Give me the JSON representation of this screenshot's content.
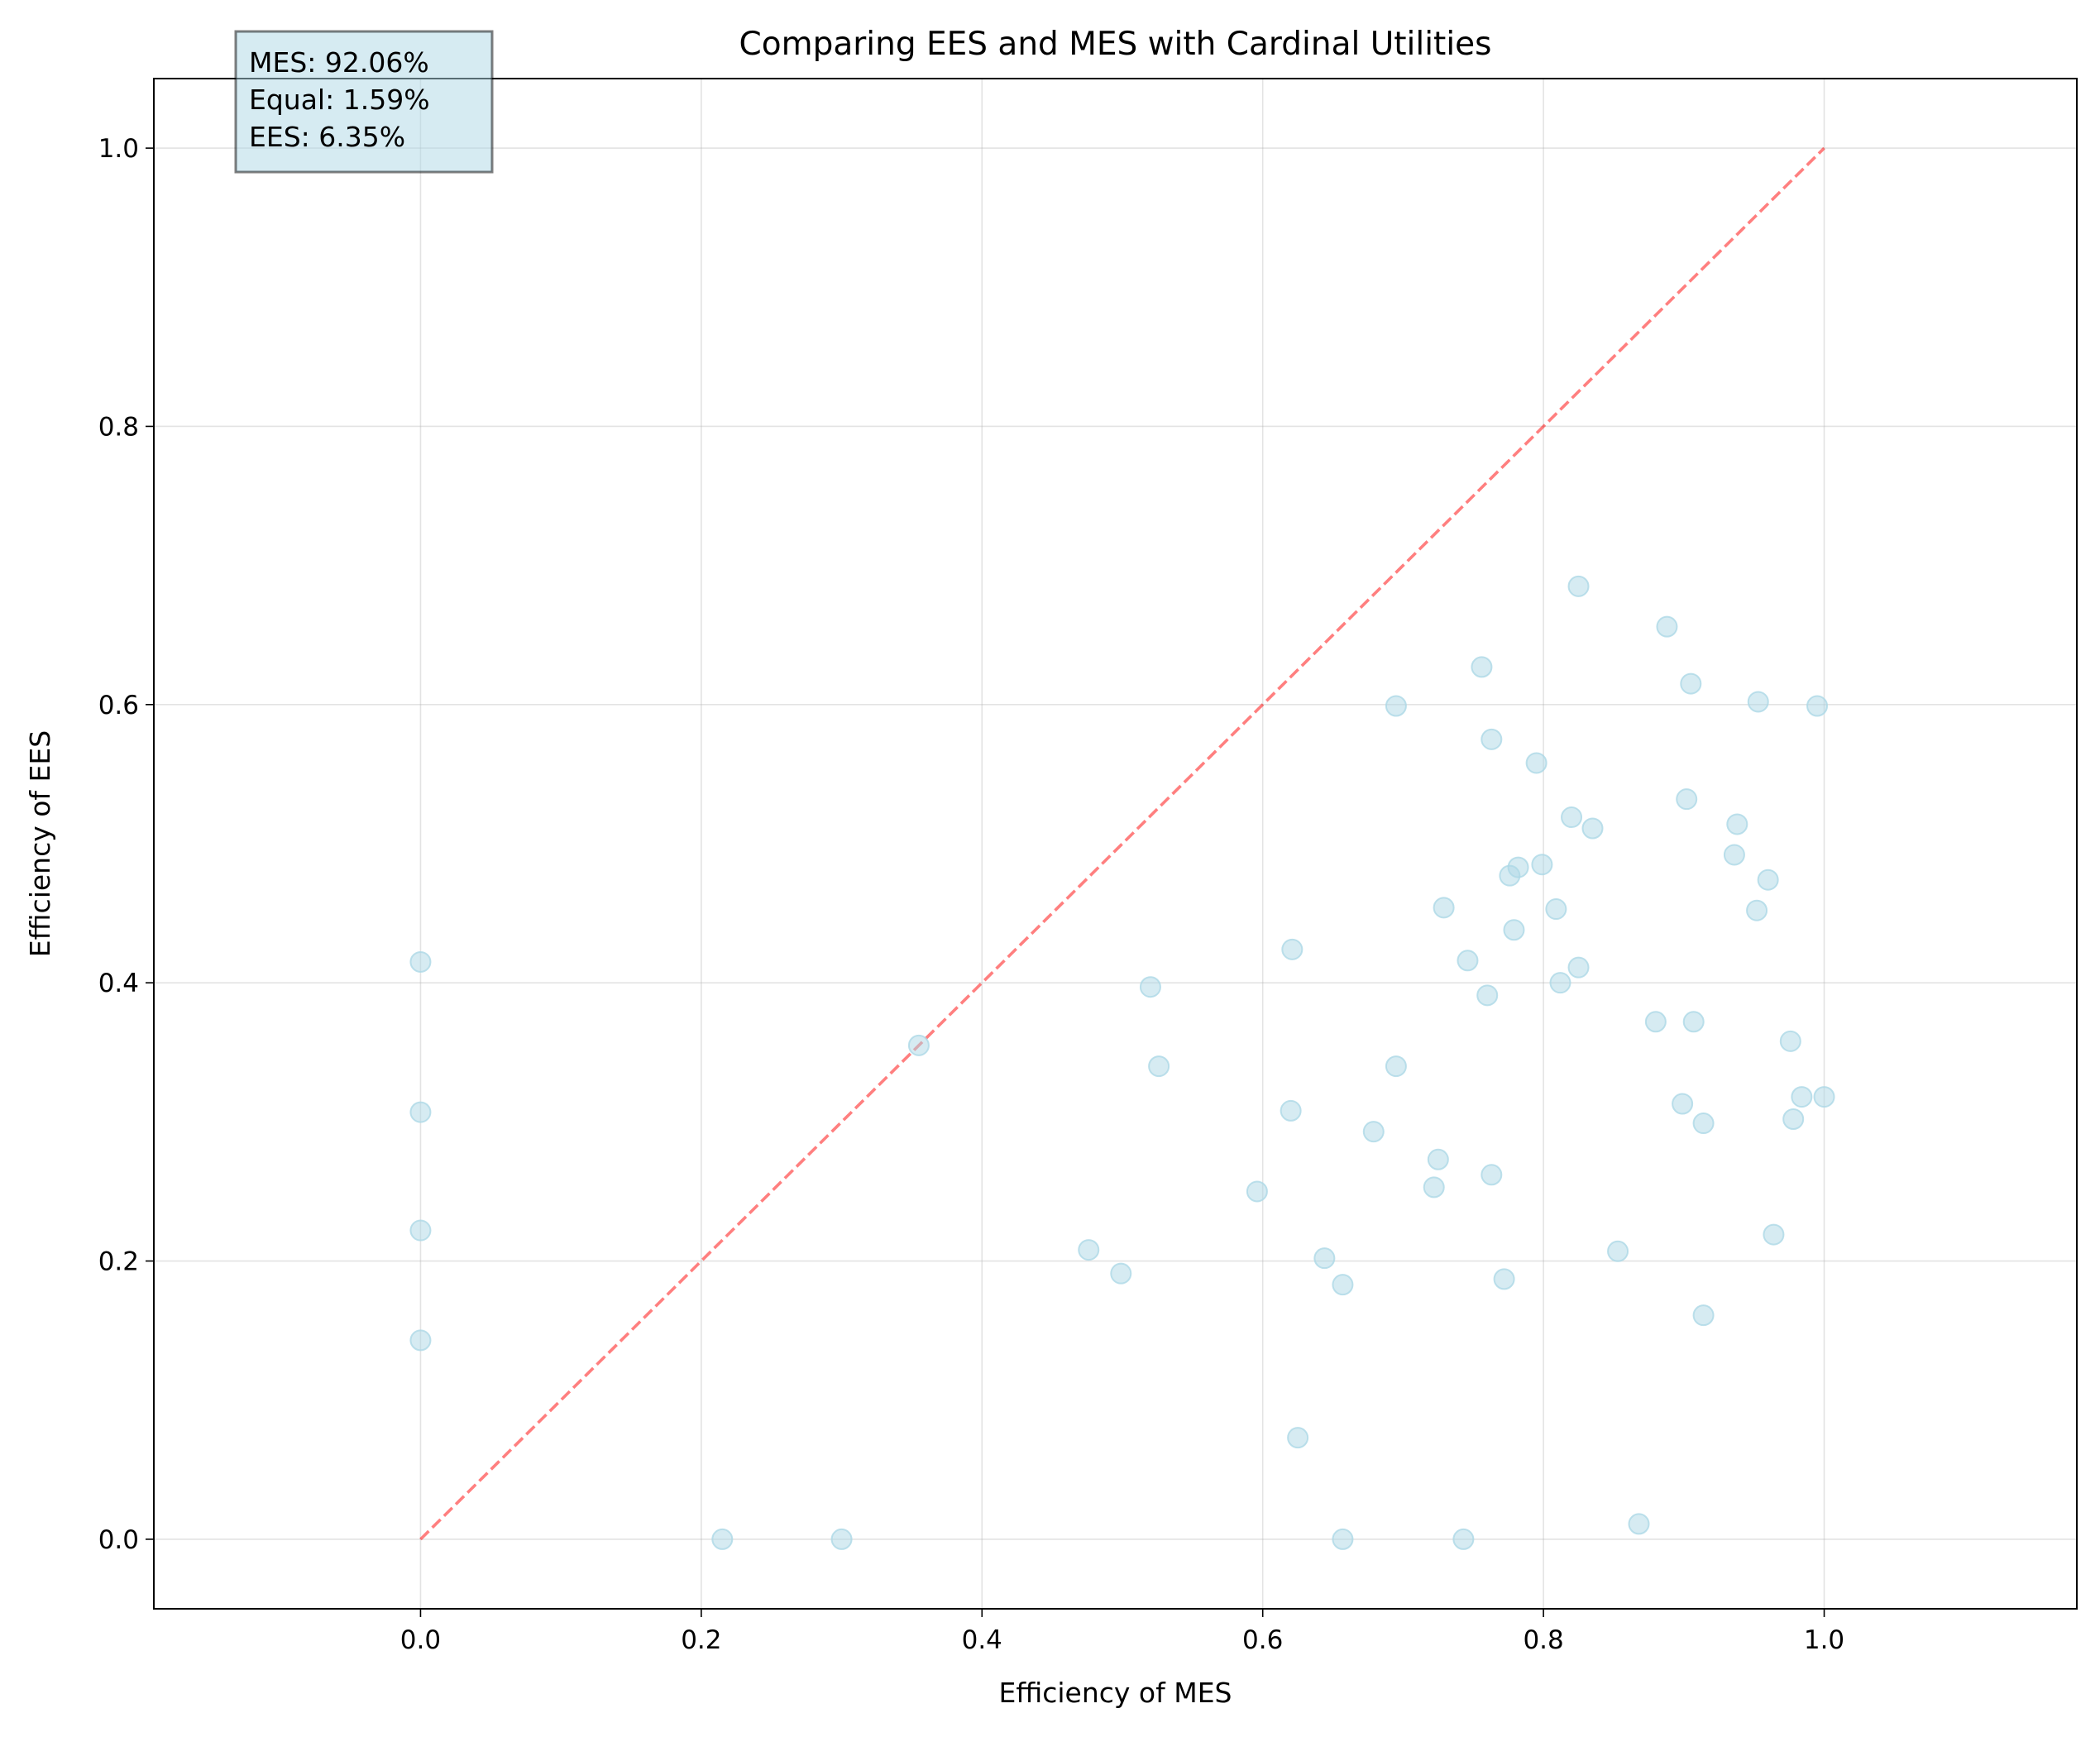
{
  "chart_data": {
    "type": "scatter",
    "title": "Comparing EES and MES with Cardinal Utilities",
    "xlabel": "Efficiency of MES",
    "ylabel": "Efficiency of EES",
    "xlim": [
      -0.19,
      1.18
    ],
    "ylim": [
      -0.05,
      1.05
    ],
    "xticks": [
      0.0,
      0.2,
      0.4,
      0.6,
      0.8,
      1.0
    ],
    "xtick_labels": [
      "0.0",
      "0.2",
      "0.4",
      "0.6",
      "0.8",
      "1.0"
    ],
    "yticks": [
      0.0,
      0.2,
      0.4,
      0.6,
      0.8,
      1.0
    ],
    "ytick_labels": [
      "0.0",
      "0.2",
      "0.4",
      "0.6",
      "0.8",
      "1.0"
    ],
    "grid": true,
    "reference_line": {
      "x": [
        0,
        1
      ],
      "y": [
        0,
        1
      ],
      "style": "dashed",
      "color": "#ff0000"
    },
    "point_color": "#add8e6",
    "annotation_lines": [
      "MES: 92.06%",
      "Equal: 1.59%",
      "EES: 6.35%"
    ],
    "points": [
      [
        0.0,
        0.415
      ],
      [
        0.0,
        0.307
      ],
      [
        0.0,
        0.222
      ],
      [
        0.0,
        0.143
      ],
      [
        0.215,
        0.0
      ],
      [
        0.3,
        0.0
      ],
      [
        0.355,
        0.355
      ],
      [
        0.476,
        0.208
      ],
      [
        0.499,
        0.191
      ],
      [
        0.52,
        0.397
      ],
      [
        0.526,
        0.34
      ],
      [
        0.596,
        0.25
      ],
      [
        0.62,
        0.308
      ],
      [
        0.621,
        0.424
      ],
      [
        0.625,
        0.073
      ],
      [
        0.644,
        0.202
      ],
      [
        0.657,
        0.183
      ],
      [
        0.657,
        0.0
      ],
      [
        0.679,
        0.293
      ],
      [
        0.695,
        0.599
      ],
      [
        0.695,
        0.34
      ],
      [
        0.722,
        0.253
      ],
      [
        0.725,
        0.273
      ],
      [
        0.729,
        0.454
      ],
      [
        0.743,
        0.0
      ],
      [
        0.746,
        0.416
      ],
      [
        0.756,
        0.627
      ],
      [
        0.76,
        0.391
      ],
      [
        0.763,
        0.575
      ],
      [
        0.763,
        0.262
      ],
      [
        0.772,
        0.187
      ],
      [
        0.776,
        0.477
      ],
      [
        0.779,
        0.438
      ],
      [
        0.782,
        0.483
      ],
      [
        0.795,
        0.558
      ],
      [
        0.799,
        0.485
      ],
      [
        0.809,
        0.453
      ],
      [
        0.812,
        0.4
      ],
      [
        0.82,
        0.519
      ],
      [
        0.825,
        0.411
      ],
      [
        0.825,
        0.685
      ],
      [
        0.835,
        0.511
      ],
      [
        0.853,
        0.207
      ],
      [
        0.868,
        0.011
      ],
      [
        0.88,
        0.372
      ],
      [
        0.888,
        0.656
      ],
      [
        0.899,
        0.313
      ],
      [
        0.902,
        0.532
      ],
      [
        0.905,
        0.615
      ],
      [
        0.907,
        0.372
      ],
      [
        0.914,
        0.299
      ],
      [
        0.914,
        0.161
      ],
      [
        0.936,
        0.492
      ],
      [
        0.938,
        0.514
      ],
      [
        0.952,
        0.452
      ],
      [
        0.953,
        0.602
      ],
      [
        0.96,
        0.474
      ],
      [
        0.964,
        0.219
      ],
      [
        0.976,
        0.358
      ],
      [
        0.978,
        0.302
      ],
      [
        0.984,
        0.318
      ],
      [
        0.995,
        0.599
      ],
      [
        1.0,
        0.318
      ]
    ]
  }
}
